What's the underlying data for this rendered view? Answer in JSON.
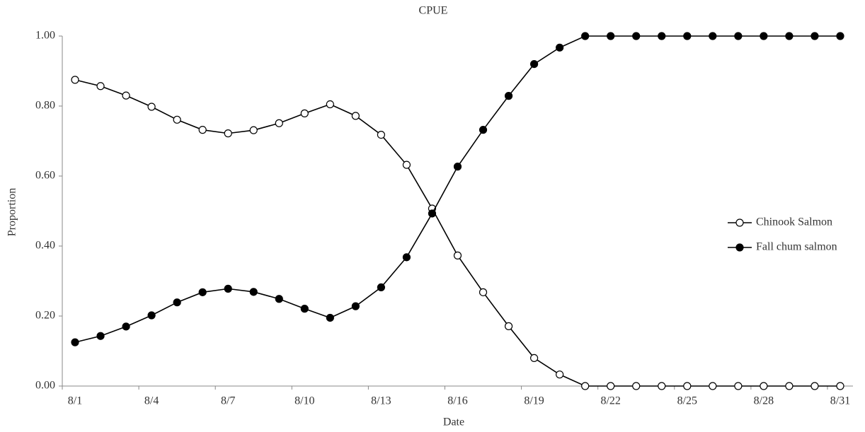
{
  "chart_data": {
    "type": "line",
    "title": "CPUE",
    "x_label": "Date",
    "y_label": "Proportion",
    "categories": [
      "8/1",
      null,
      null,
      "8/4",
      null,
      null,
      "8/7",
      null,
      null,
      "8/10",
      null,
      null,
      "8/13",
      null,
      null,
      "8/16",
      null,
      null,
      "8/19",
      null,
      null,
      "8/22",
      null,
      null,
      "8/25",
      null,
      null,
      "8/28",
      null,
      null,
      "8/31"
    ],
    "series": [
      {
        "name": "Chinook Salmon",
        "color": "#000000",
        "marker": "open",
        "values": [
          0.875,
          0.857,
          0.83,
          0.798,
          0.761,
          0.732,
          0.722,
          0.731,
          0.751,
          0.779,
          0.805,
          0.772,
          0.718,
          0.632,
          0.507,
          0.373,
          0.268,
          0.171,
          0.08,
          0.033,
          0,
          0,
          0,
          0,
          0,
          0,
          0,
          0,
          0,
          0,
          0
        ]
      },
      {
        "name": "Fall chum salmon",
        "color": "#000000",
        "marker": "filled",
        "values": [
          0.125,
          0.143,
          0.17,
          0.202,
          0.239,
          0.268,
          0.278,
          0.269,
          0.249,
          0.221,
          0.195,
          0.228,
          0.282,
          0.368,
          0.493,
          0.627,
          0.732,
          0.829,
          0.92,
          0.967,
          1,
          1,
          1,
          1,
          1,
          1,
          1,
          1,
          1,
          1,
          1
        ]
      }
    ],
    "ylim": [
      0,
      1
    ],
    "yticks": [
      {
        "value": 0,
        "label": "0.00"
      },
      {
        "value": 0.2,
        "label": "0.20"
      },
      {
        "value": 0.4,
        "label": "0.40"
      },
      {
        "value": 0.6,
        "label": "0.60"
      },
      {
        "value": 0.8,
        "label": "0.80"
      },
      {
        "value": 1,
        "label": "1.00"
      }
    ],
    "grid": false,
    "legend": "right"
  }
}
